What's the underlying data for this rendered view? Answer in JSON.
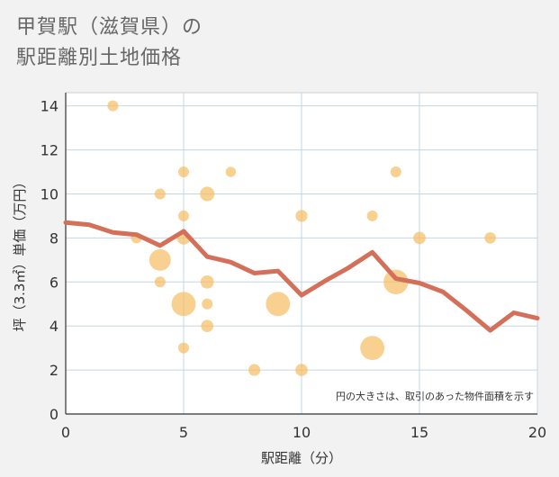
{
  "title": {
    "line1": "甲賀駅（滋賀県）の",
    "line2": "駅距離別土地価格"
  },
  "colors": {
    "background": "#f2f2f2",
    "plot_bg": "#ffffff",
    "grid": "#c5d5e4",
    "bubble": "#f5be64",
    "line": "#d4705a"
  },
  "chart_data": {
    "type": "scatter",
    "xlabel": "駅距離（分）",
    "ylabel": "坪（3.3㎡）単価（万円）",
    "xlim": [
      0,
      20
    ],
    "ylim": [
      0,
      14.6
    ],
    "xticks": [
      0,
      5,
      10,
      15,
      20
    ],
    "yticks": [
      0,
      2,
      4,
      6,
      8,
      10,
      12,
      14
    ],
    "note": "円の大きさは、取引のあった物件面積を示す",
    "bubbles": [
      {
        "x": 2,
        "y": 14,
        "size": 1
      },
      {
        "x": 3,
        "y": 8,
        "size": 1
      },
      {
        "x": 4,
        "y": 10,
        "size": 1
      },
      {
        "x": 4,
        "y": 7,
        "size": 4
      },
      {
        "x": 4,
        "y": 6,
        "size": 1
      },
      {
        "x": 5,
        "y": 11,
        "size": 1
      },
      {
        "x": 5,
        "y": 9,
        "size": 1
      },
      {
        "x": 5,
        "y": 8,
        "size": 1.5
      },
      {
        "x": 5,
        "y": 5,
        "size": 5
      },
      {
        "x": 5,
        "y": 3,
        "size": 1
      },
      {
        "x": 6,
        "y": 10,
        "size": 1.8
      },
      {
        "x": 6,
        "y": 6,
        "size": 1.5
      },
      {
        "x": 6,
        "y": 5,
        "size": 1
      },
      {
        "x": 6,
        "y": 4,
        "size": 1.3
      },
      {
        "x": 7,
        "y": 11,
        "size": 0.9
      },
      {
        "x": 8,
        "y": 2,
        "size": 1.2
      },
      {
        "x": 9,
        "y": 5,
        "size": 5
      },
      {
        "x": 10,
        "y": 9,
        "size": 1.2
      },
      {
        "x": 10,
        "y": 2,
        "size": 1.3
      },
      {
        "x": 13,
        "y": 9,
        "size": 1
      },
      {
        "x": 13,
        "y": 3,
        "size": 5
      },
      {
        "x": 14,
        "y": 11,
        "size": 1
      },
      {
        "x": 14,
        "y": 6,
        "size": 5.2
      },
      {
        "x": 15,
        "y": 8,
        "size": 1.3
      },
      {
        "x": 18,
        "y": 8,
        "size": 1.1
      }
    ],
    "trend_line": {
      "x": [
        0,
        1,
        2,
        3,
        4,
        5,
        6,
        7,
        8,
        9,
        10,
        11,
        12,
        13,
        14,
        15,
        16,
        17,
        18,
        19,
        20
      ],
      "y": [
        8.7,
        8.6,
        8.25,
        8.15,
        7.65,
        8.3,
        7.15,
        6.9,
        6.4,
        6.5,
        5.4,
        6.05,
        6.65,
        7.35,
        6.15,
        5.95,
        5.55,
        4.7,
        3.8,
        4.6,
        4.35
      ]
    }
  }
}
